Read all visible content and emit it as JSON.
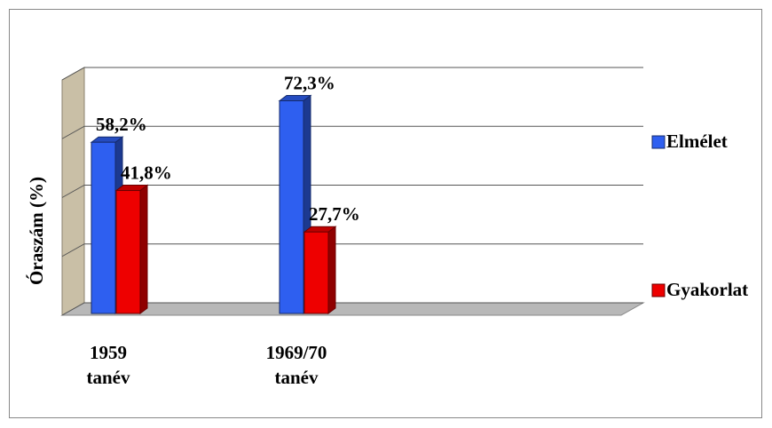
{
  "chart_data": {
    "type": "bar3d",
    "categories": [
      "1959 tanév",
      "1969/70 tanév"
    ],
    "series": [
      {
        "name": "Elmélet",
        "color": "#2e5ff0",
        "values": [
          58.2,
          72.3
        ],
        "value_labels": [
          "58,2%",
          "72,3%"
        ]
      },
      {
        "name": "Gyakorlat",
        "color": "#ee0000",
        "values": [
          41.8,
          27.7
        ],
        "value_labels": [
          "41,8%",
          "27,7%"
        ]
      }
    ],
    "y_label": "Óraszám (%)",
    "ylim": [
      0,
      80
    ],
    "yticks": [
      0,
      20,
      40,
      60,
      80
    ],
    "grid": true,
    "legend": "right"
  }
}
